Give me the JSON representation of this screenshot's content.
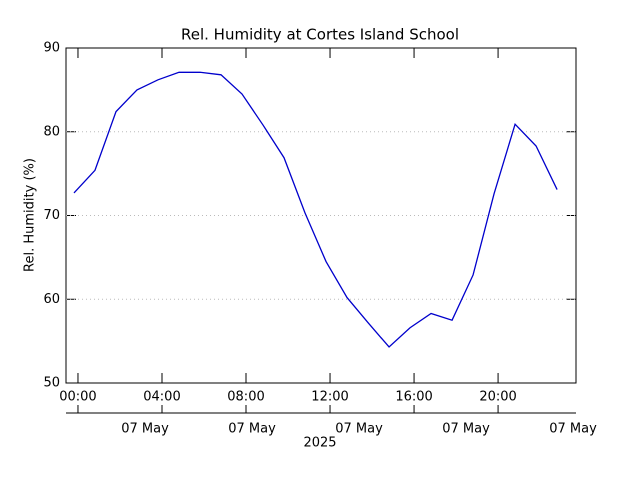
{
  "chart_data": {
    "type": "line",
    "title": "Rel. Humidity at Cortes Island School",
    "ylabel": "Rel. Humidity (%)",
    "x": [
      -0.19,
      0.81,
      1.81,
      2.81,
      3.81,
      4.81,
      5.81,
      6.81,
      7.81,
      8.81,
      9.81,
      10.81,
      11.81,
      12.81,
      13.81,
      14.81,
      15.81,
      16.81,
      17.81,
      18.81,
      19.81,
      20.81,
      21.81,
      22.81
    ],
    "series": [
      {
        "name": "Rel. Humidity",
        "color": "#0000cc",
        "values": [
          72.7,
          75.4,
          82.4,
          85.0,
          86.2,
          87.1,
          87.1,
          86.8,
          84.5,
          80.8,
          76.9,
          70.3,
          64.5,
          60.2,
          57.2,
          54.3,
          56.6,
          58.3,
          57.5,
          62.9,
          72.6,
          80.9,
          78.3,
          73.1
        ]
      }
    ],
    "xlim": [
      -0.57,
      23.71
    ],
    "xticks": [
      {
        "value": 0,
        "label": "00:00"
      },
      {
        "value": 4,
        "label": "04:00"
      },
      {
        "value": 8,
        "label": "08:00"
      },
      {
        "value": 12,
        "label": "12:00"
      },
      {
        "value": 16,
        "label": "16:00"
      },
      {
        "value": 20,
        "label": "20:00"
      }
    ],
    "date_labels": [
      "07 May",
      "07 May",
      "07 May",
      "07 May",
      "07 May"
    ],
    "year_label": "2025",
    "ylim": [
      50,
      90
    ],
    "yticks": [
      50,
      60,
      70,
      80,
      90
    ],
    "grid": true
  }
}
